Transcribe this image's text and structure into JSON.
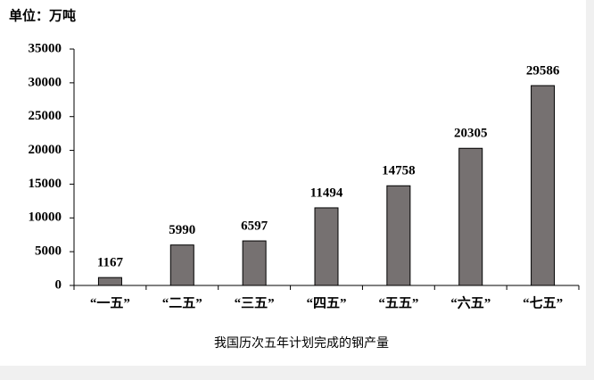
{
  "chart_data": {
    "type": "bar",
    "unit_label": "单位：万吨",
    "title": "我国历次五年计划完成的钢产量",
    "categories": [
      "“一五”",
      "“二五”",
      "“三五”",
      "“四五”",
      "“五五”",
      "“六五”",
      "“七五”"
    ],
    "values": [
      1167,
      5990,
      6597,
      11494,
      14758,
      20305,
      29586
    ],
    "color": "#767171",
    "ylim": [
      0,
      35000
    ],
    "yticks": [
      0,
      5000,
      10000,
      15000,
      20000,
      25000,
      30000,
      35000
    ],
    "grid": false
  }
}
